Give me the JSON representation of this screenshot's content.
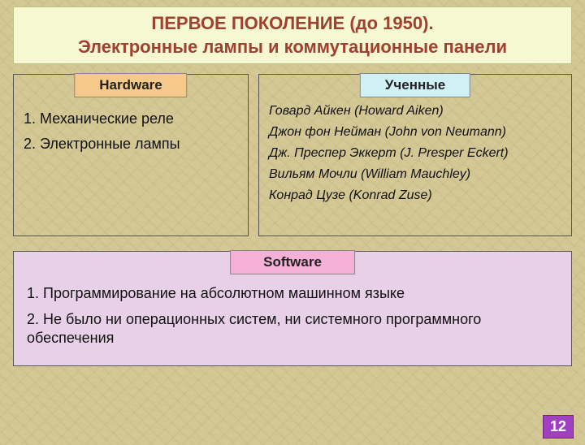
{
  "title": {
    "line1": "ПЕРВОЕ ПОКОЛЕНИЕ (до 1950).",
    "line2": "Электронные лампы и коммутационные панели",
    "text_color": "#a04030",
    "bg_color": "#f5f8d0",
    "fontsize": 22
  },
  "hardware": {
    "label": "Hardware",
    "label_bg": "#f5c98a",
    "items": [
      "1. Механические реле",
      "2. Электронные лампы"
    ]
  },
  "scientists": {
    "label": "Ученные",
    "label_bg": "#d0f0f5",
    "items": [
      "Говард Айкен (Howard Aiken)",
      "Джон фон Нейман (John von Neumann)",
      "Дж. Преспер Эккерт (J. Presper Eckert)",
      "Вильям Мочли (William Mauchley)",
      "Конрад Цузе (Konrad Zuse)"
    ]
  },
  "software": {
    "label": "Software",
    "label_bg": "#f5b0d8",
    "panel_bg": "#e8d0e8",
    "items": [
      "1. Программирование на абсолютном машинном языке",
      "2. Не было ни операционных систем, ни системного программного обеспечения"
    ]
  },
  "page_number": "12",
  "page_number_bg": "#a040c0",
  "background_color": "#d4c896"
}
